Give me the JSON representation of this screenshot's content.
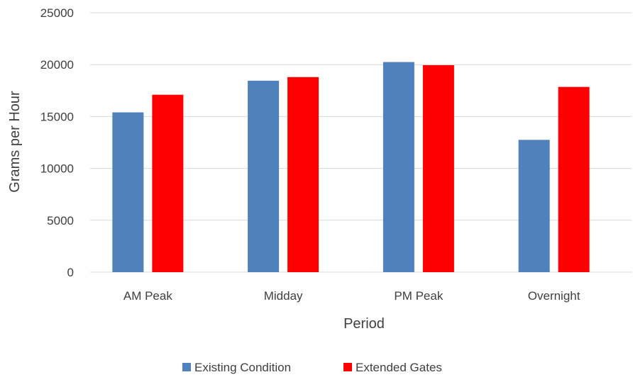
{
  "chart_data": {
    "type": "bar",
    "title": "",
    "xlabel": "Period",
    "ylabel": "Grams per Hour",
    "categories": [
      "AM Peak",
      "Midday",
      "PM Peak",
      "Overnight"
    ],
    "series": [
      {
        "name": "Existing Condition",
        "color": "#4f81bd",
        "values": [
          15400,
          18450,
          20250,
          12750
        ]
      },
      {
        "name": "Extended Gates",
        "color": "#ff0000",
        "values": [
          17100,
          18800,
          19950,
          17850
        ]
      }
    ],
    "ylim": [
      0,
      25000
    ],
    "yticks": [
      "0",
      "5000",
      "10000",
      "15000",
      "20000",
      "25000"
    ],
    "grid": true,
    "legend_position": "bottom"
  }
}
